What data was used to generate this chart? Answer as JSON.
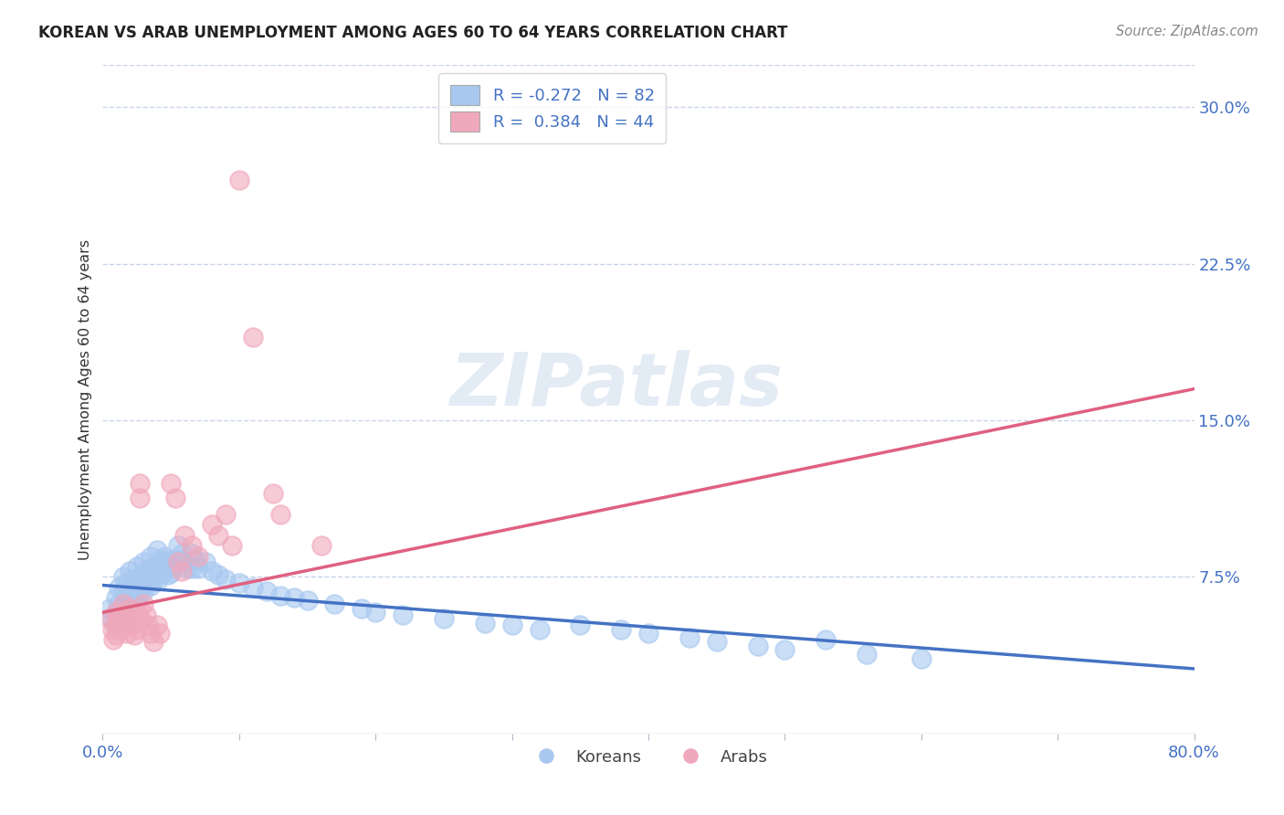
{
  "title": "KOREAN VS ARAB UNEMPLOYMENT AMONG AGES 60 TO 64 YEARS CORRELATION CHART",
  "source": "Source: ZipAtlas.com",
  "ylabel": "Unemployment Among Ages 60 to 64 years",
  "xlim": [
    0.0,
    0.8
  ],
  "ylim": [
    0.0,
    0.32
  ],
  "yticks_right": [
    0.075,
    0.15,
    0.225,
    0.3
  ],
  "ytick_right_labels": [
    "7.5%",
    "15.0%",
    "22.5%",
    "30.0%"
  ],
  "korean_color": "#a8c8f0",
  "arab_color": "#f0a8bc",
  "korean_line_color": "#4472c4",
  "arab_line_color": "#e06080",
  "background_color": "#ffffff",
  "grid_color": "#c8d4e8",
  "legend_korean_label": "R = -0.272   N = 82",
  "legend_arab_label": "R =  0.384   N = 44",
  "watermark": "ZIPatlas",
  "korean_line": [
    [
      0.0,
      0.071
    ],
    [
      0.8,
      0.031
    ]
  ],
  "arab_line": [
    [
      0.0,
      0.058
    ],
    [
      0.8,
      0.165
    ]
  ],
  "korean_scatter": [
    [
      0.005,
      0.06
    ],
    [
      0.007,
      0.055
    ],
    [
      0.009,
      0.052
    ],
    [
      0.01,
      0.065
    ],
    [
      0.01,
      0.058
    ],
    [
      0.012,
      0.07
    ],
    [
      0.012,
      0.062
    ],
    [
      0.013,
      0.057
    ],
    [
      0.015,
      0.075
    ],
    [
      0.015,
      0.068
    ],
    [
      0.015,
      0.062
    ],
    [
      0.017,
      0.072
    ],
    [
      0.018,
      0.065
    ],
    [
      0.02,
      0.078
    ],
    [
      0.02,
      0.07
    ],
    [
      0.02,
      0.063
    ],
    [
      0.022,
      0.074
    ],
    [
      0.023,
      0.068
    ],
    [
      0.025,
      0.08
    ],
    [
      0.025,
      0.072
    ],
    [
      0.025,
      0.065
    ],
    [
      0.027,
      0.075
    ],
    [
      0.028,
      0.069
    ],
    [
      0.03,
      0.082
    ],
    [
      0.03,
      0.075
    ],
    [
      0.03,
      0.068
    ],
    [
      0.032,
      0.078
    ],
    [
      0.033,
      0.072
    ],
    [
      0.035,
      0.085
    ],
    [
      0.035,
      0.078
    ],
    [
      0.035,
      0.071
    ],
    [
      0.037,
      0.08
    ],
    [
      0.038,
      0.074
    ],
    [
      0.04,
      0.088
    ],
    [
      0.04,
      0.08
    ],
    [
      0.04,
      0.073
    ],
    [
      0.042,
      0.083
    ],
    [
      0.043,
      0.077
    ],
    [
      0.045,
      0.085
    ],
    [
      0.045,
      0.078
    ],
    [
      0.047,
      0.082
    ],
    [
      0.048,
      0.076
    ],
    [
      0.05,
      0.083
    ],
    [
      0.05,
      0.077
    ],
    [
      0.052,
      0.08
    ],
    [
      0.055,
      0.09
    ],
    [
      0.055,
      0.083
    ],
    [
      0.058,
      0.086
    ],
    [
      0.06,
      0.082
    ],
    [
      0.062,
      0.079
    ],
    [
      0.065,
      0.086
    ],
    [
      0.065,
      0.079
    ],
    [
      0.068,
      0.083
    ],
    [
      0.07,
      0.079
    ],
    [
      0.075,
      0.082
    ],
    [
      0.08,
      0.078
    ],
    [
      0.085,
      0.076
    ],
    [
      0.09,
      0.074
    ],
    [
      0.1,
      0.072
    ],
    [
      0.11,
      0.07
    ],
    [
      0.12,
      0.068
    ],
    [
      0.13,
      0.066
    ],
    [
      0.14,
      0.065
    ],
    [
      0.15,
      0.064
    ],
    [
      0.17,
      0.062
    ],
    [
      0.19,
      0.06
    ],
    [
      0.2,
      0.058
    ],
    [
      0.22,
      0.057
    ],
    [
      0.25,
      0.055
    ],
    [
      0.28,
      0.053
    ],
    [
      0.3,
      0.052
    ],
    [
      0.32,
      0.05
    ],
    [
      0.35,
      0.052
    ],
    [
      0.38,
      0.05
    ],
    [
      0.4,
      0.048
    ],
    [
      0.43,
      0.046
    ],
    [
      0.45,
      0.044
    ],
    [
      0.48,
      0.042
    ],
    [
      0.5,
      0.04
    ],
    [
      0.53,
      0.045
    ],
    [
      0.56,
      0.038
    ],
    [
      0.6,
      0.036
    ]
  ],
  "arab_scatter": [
    [
      0.005,
      0.055
    ],
    [
      0.007,
      0.05
    ],
    [
      0.008,
      0.045
    ],
    [
      0.01,
      0.058
    ],
    [
      0.01,
      0.052
    ],
    [
      0.01,
      0.047
    ],
    [
      0.012,
      0.055
    ],
    [
      0.013,
      0.05
    ],
    [
      0.015,
      0.062
    ],
    [
      0.015,
      0.057
    ],
    [
      0.017,
      0.053
    ],
    [
      0.018,
      0.048
    ],
    [
      0.02,
      0.06
    ],
    [
      0.02,
      0.055
    ],
    [
      0.022,
      0.052
    ],
    [
      0.023,
      0.047
    ],
    [
      0.025,
      0.058
    ],
    [
      0.025,
      0.05
    ],
    [
      0.027,
      0.12
    ],
    [
      0.027,
      0.113
    ],
    [
      0.028,
      0.055
    ],
    [
      0.03,
      0.062
    ],
    [
      0.032,
      0.057
    ],
    [
      0.033,
      0.052
    ],
    [
      0.035,
      0.048
    ],
    [
      0.037,
      0.044
    ],
    [
      0.04,
      0.052
    ],
    [
      0.042,
      0.048
    ],
    [
      0.05,
      0.12
    ],
    [
      0.053,
      0.113
    ],
    [
      0.055,
      0.082
    ],
    [
      0.058,
      0.078
    ],
    [
      0.06,
      0.095
    ],
    [
      0.065,
      0.09
    ],
    [
      0.07,
      0.085
    ],
    [
      0.08,
      0.1
    ],
    [
      0.085,
      0.095
    ],
    [
      0.09,
      0.105
    ],
    [
      0.095,
      0.09
    ],
    [
      0.1,
      0.265
    ],
    [
      0.11,
      0.19
    ],
    [
      0.125,
      0.115
    ],
    [
      0.13,
      0.105
    ],
    [
      0.16,
      0.09
    ]
  ]
}
